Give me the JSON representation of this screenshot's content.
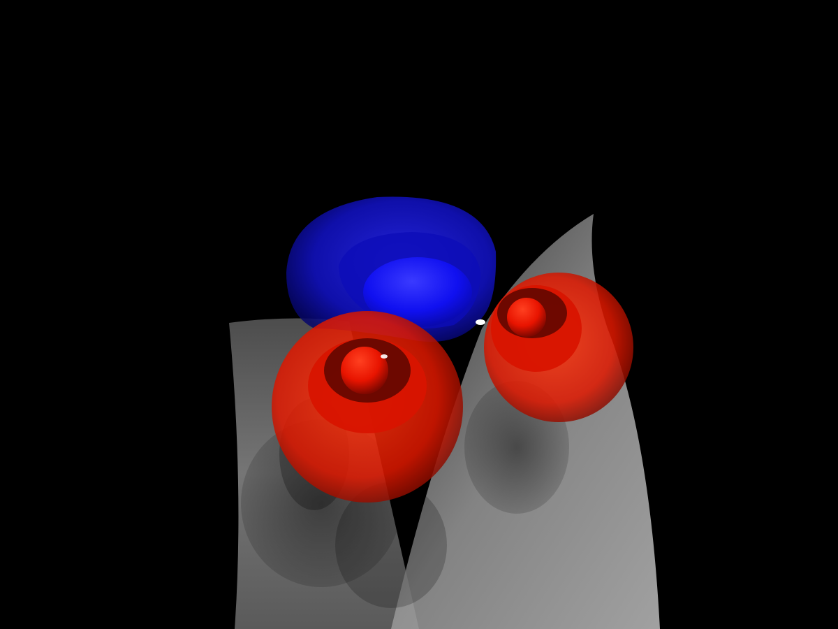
{
  "scene": {
    "background_color": "#000000",
    "objects": [
      {
        "name": "blue-isosurface-lobe",
        "color": "#1010ff"
      },
      {
        "name": "red-isosurface-lobe-left",
        "color": "#ff2000"
      },
      {
        "name": "red-isosurface-lobe-right",
        "color": "#ff2000"
      },
      {
        "name": "gray-curved-surface",
        "color": "#b0b0b0"
      },
      {
        "name": "white-atom-marker",
        "color": "#ffffff"
      }
    ]
  }
}
